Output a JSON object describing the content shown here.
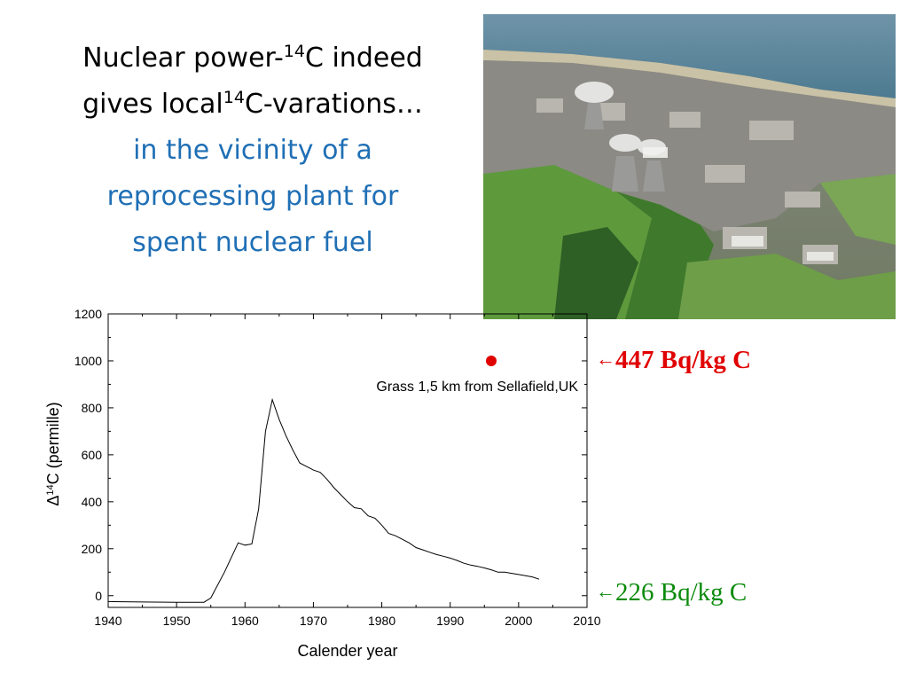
{
  "title": {
    "line1_before_sup": "Nuclear power-",
    "sup1": "14",
    "line1_after_sup": "C indeed",
    "line2_before_sup": "gives local",
    "sup2": "14",
    "line2_after_sup": "C-varations…",
    "subtitle_lines": [
      "in the vicinity of a",
      "reprocessing plant for",
      "spent nuclear fuel"
    ]
  },
  "annotations": {
    "red_label": "447 Bq/kg C",
    "green_label": "226 Bq/kg C",
    "red_color": "#E00000",
    "green_color": "#0A8A0A"
  },
  "chart_data": {
    "type": "line",
    "xlabel": "Calender year",
    "ylabel_prefix": "Δ",
    "ylabel_sup": "14",
    "ylabel_rest": "C (permille)",
    "xlim": [
      1940,
      2010
    ],
    "ylim": [
      -50,
      1200
    ],
    "xticks": [
      1940,
      1950,
      1960,
      1970,
      1980,
      1990,
      2000,
      2010
    ],
    "yticks": [
      0,
      200,
      400,
      600,
      800,
      1000,
      1200
    ],
    "grid": false,
    "series": [
      {
        "x": [
          1940,
          1945,
          1950,
          1954,
          1955,
          1957,
          1959,
          1960,
          1961,
          1962,
          1963,
          1964,
          1965,
          1966,
          1967,
          1968,
          1969,
          1970,
          1971,
          1972,
          1973,
          1974,
          1975,
          1976,
          1977,
          1978,
          1979,
          1980,
          1981,
          1982,
          1983,
          1984,
          1985,
          1986,
          1987,
          1988,
          1989,
          1990,
          1991,
          1992,
          1993,
          1994,
          1995,
          1996,
          1997,
          1998,
          1999,
          2000,
          2001,
          2002,
          2003
        ],
        "y": [
          -25,
          -27,
          -28,
          -28,
          -10,
          100,
          225,
          215,
          220,
          370,
          700,
          835,
          750,
          680,
          620,
          565,
          550,
          535,
          525,
          495,
          460,
          430,
          400,
          375,
          370,
          340,
          330,
          300,
          265,
          255,
          240,
          225,
          205,
          195,
          185,
          175,
          168,
          160,
          150,
          138,
          130,
          125,
          118,
          110,
          100,
          100,
          95,
          90,
          85,
          80,
          70
        ]
      }
    ],
    "points": [
      {
        "x": 1996,
        "y": 1000,
        "color": "#E00000",
        "label": "Grass 1,5 km from Sellafield,UK"
      }
    ]
  }
}
